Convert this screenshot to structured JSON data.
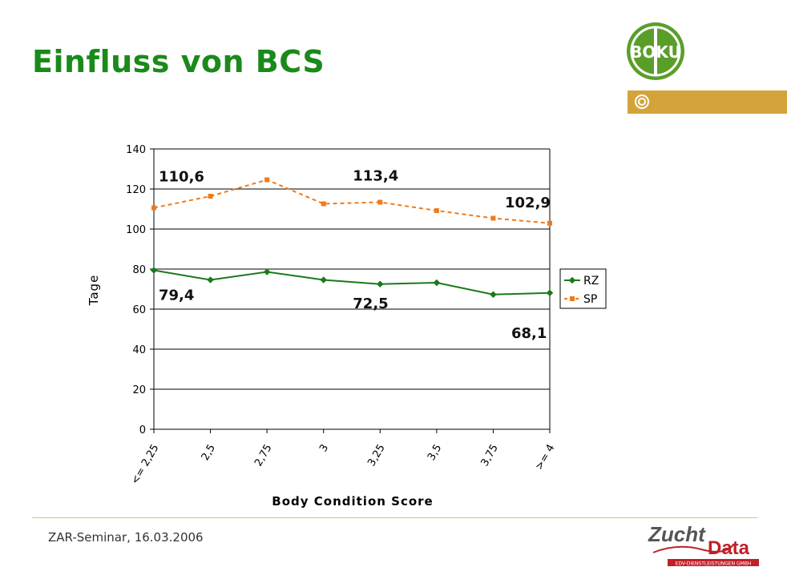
{
  "title": "Einfluss von BCS",
  "logo": {
    "text": "BOKU"
  },
  "footer": {
    "text": "ZAR-Seminar, 16.03.2006",
    "brand_main": "Zucht",
    "brand_second": "Data",
    "brand_sub": "EDV-DIENSTLEISTUNGEN GMBH"
  },
  "colors": {
    "title": "#1a8a1a",
    "rz": "#1a7a1a",
    "sp": "#f07a1a",
    "accent": "#d4a33a"
  },
  "chart_data": {
    "type": "line",
    "xlabel": "Body Condition Score",
    "ylabel": "Tage",
    "ylim": [
      0,
      140
    ],
    "yticks": [
      0,
      20,
      40,
      60,
      80,
      100,
      120,
      140
    ],
    "categories": [
      "<= 2,25",
      "2,5",
      "2,75",
      "3",
      "3,25",
      "3,5",
      "3,75",
      ">= 4"
    ],
    "series": [
      {
        "name": "RZ",
        "values": [
          79.4,
          74.6,
          78.6,
          74.6,
          72.5,
          73.2,
          67.3,
          68.1
        ]
      },
      {
        "name": "SP",
        "values": [
          110.6,
          116.4,
          124.6,
          112.6,
          113.4,
          109.2,
          105.4,
          102.9
        ]
      }
    ],
    "annotations": [
      "110,6",
      "113,4",
      "102,9",
      "79,4",
      "72,5",
      "68,1"
    ],
    "legend": "right"
  }
}
